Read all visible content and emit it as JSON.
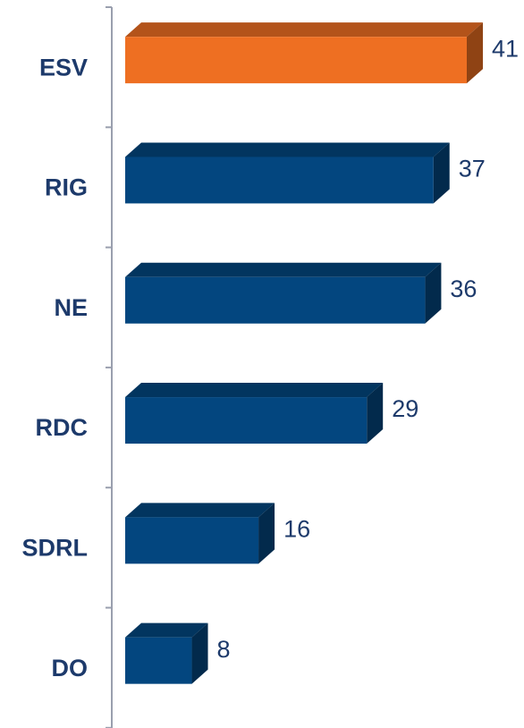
{
  "chart_data": {
    "type": "bar3d-horizontal",
    "categories": [
      "ESV",
      "RIG",
      "NE",
      "RDC",
      "SDRL",
      "DO"
    ],
    "values": [
      41,
      37,
      36,
      29,
      16,
      8
    ],
    "colors": [
      "#ee6f22",
      "#03467f",
      "#03467f",
      "#03467f",
      "#03467f",
      "#03467f"
    ]
  }
}
